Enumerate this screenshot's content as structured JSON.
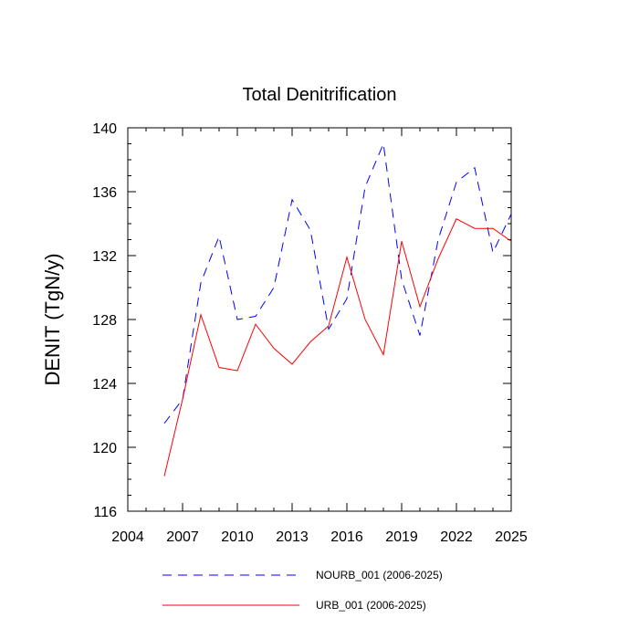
{
  "chart_data": {
    "type": "line",
    "title": "Total Denitrification",
    "xlabel": "",
    "ylabel": "DENIT  (TgN/y)",
    "xlim": [
      2004,
      2025
    ],
    "ylim": [
      116,
      140
    ],
    "x_ticks": [
      "2004",
      "2007",
      "2010",
      "2013",
      "2016",
      "2019",
      "2022",
      "2025"
    ],
    "y_ticks": [
      "116",
      "120",
      "124",
      "128",
      "132",
      "136",
      "140"
    ],
    "x": [
      2006,
      2007,
      2008,
      2009,
      2010,
      2011,
      2012,
      2013,
      2014,
      2015,
      2016,
      2017,
      2018,
      2019,
      2020,
      2021,
      2022,
      2023,
      2024,
      2025
    ],
    "series": [
      {
        "name": "NOURB_001 (2006-2025)",
        "color": "#0000ff",
        "dash": "dashed",
        "values": [
          121.5,
          123.0,
          130.3,
          133.2,
          128.0,
          128.2,
          130.0,
          135.5,
          133.6,
          127.4,
          129.3,
          136.3,
          139.0,
          130.5,
          127.0,
          133.0,
          136.6,
          137.5,
          132.2,
          134.6
        ]
      },
      {
        "name": "URB_001 (2006-2025)",
        "color": "#ff0000",
        "dash": "solid",
        "values": [
          118.2,
          123.0,
          128.3,
          125.0,
          124.8,
          127.7,
          126.2,
          125.2,
          126.6,
          127.6,
          131.9,
          128.0,
          125.8,
          132.9,
          128.8,
          131.8,
          134.3,
          133.7,
          133.7,
          132.9
        ]
      }
    ],
    "grid": false,
    "legend_position": "bottom"
  }
}
